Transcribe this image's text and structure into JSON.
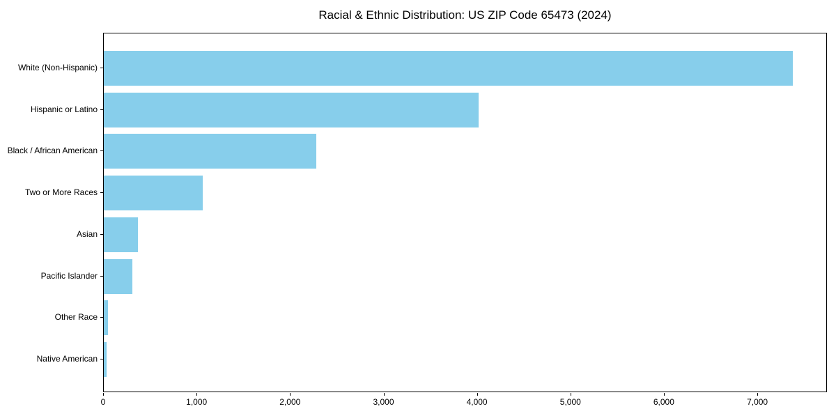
{
  "chart_data": {
    "type": "bar",
    "orientation": "horizontal",
    "title": "Racial & Ethnic Distribution: US ZIP Code 65473 (2024)",
    "categories": [
      "White (Non-Hispanic)",
      "Hispanic or Latino",
      "Black / African American",
      "Two or More Races",
      "Asian",
      "Pacific Islander",
      "Other Race",
      "Native American"
    ],
    "values": [
      7370,
      4010,
      2270,
      1055,
      365,
      305,
      45,
      30
    ],
    "xlabel": "",
    "ylabel": "",
    "xlim": [
      0,
      7745
    ],
    "x_ticks": [
      0,
      1000,
      2000,
      3000,
      4000,
      5000,
      6000,
      7000
    ],
    "x_tick_labels": [
      "0",
      "1,000",
      "2,000",
      "3,000",
      "4,000",
      "5,000",
      "6,000",
      "7,000"
    ],
    "bar_color": "#87CEEB",
    "text_color": "#000000",
    "grid": false,
    "legend": null
  }
}
